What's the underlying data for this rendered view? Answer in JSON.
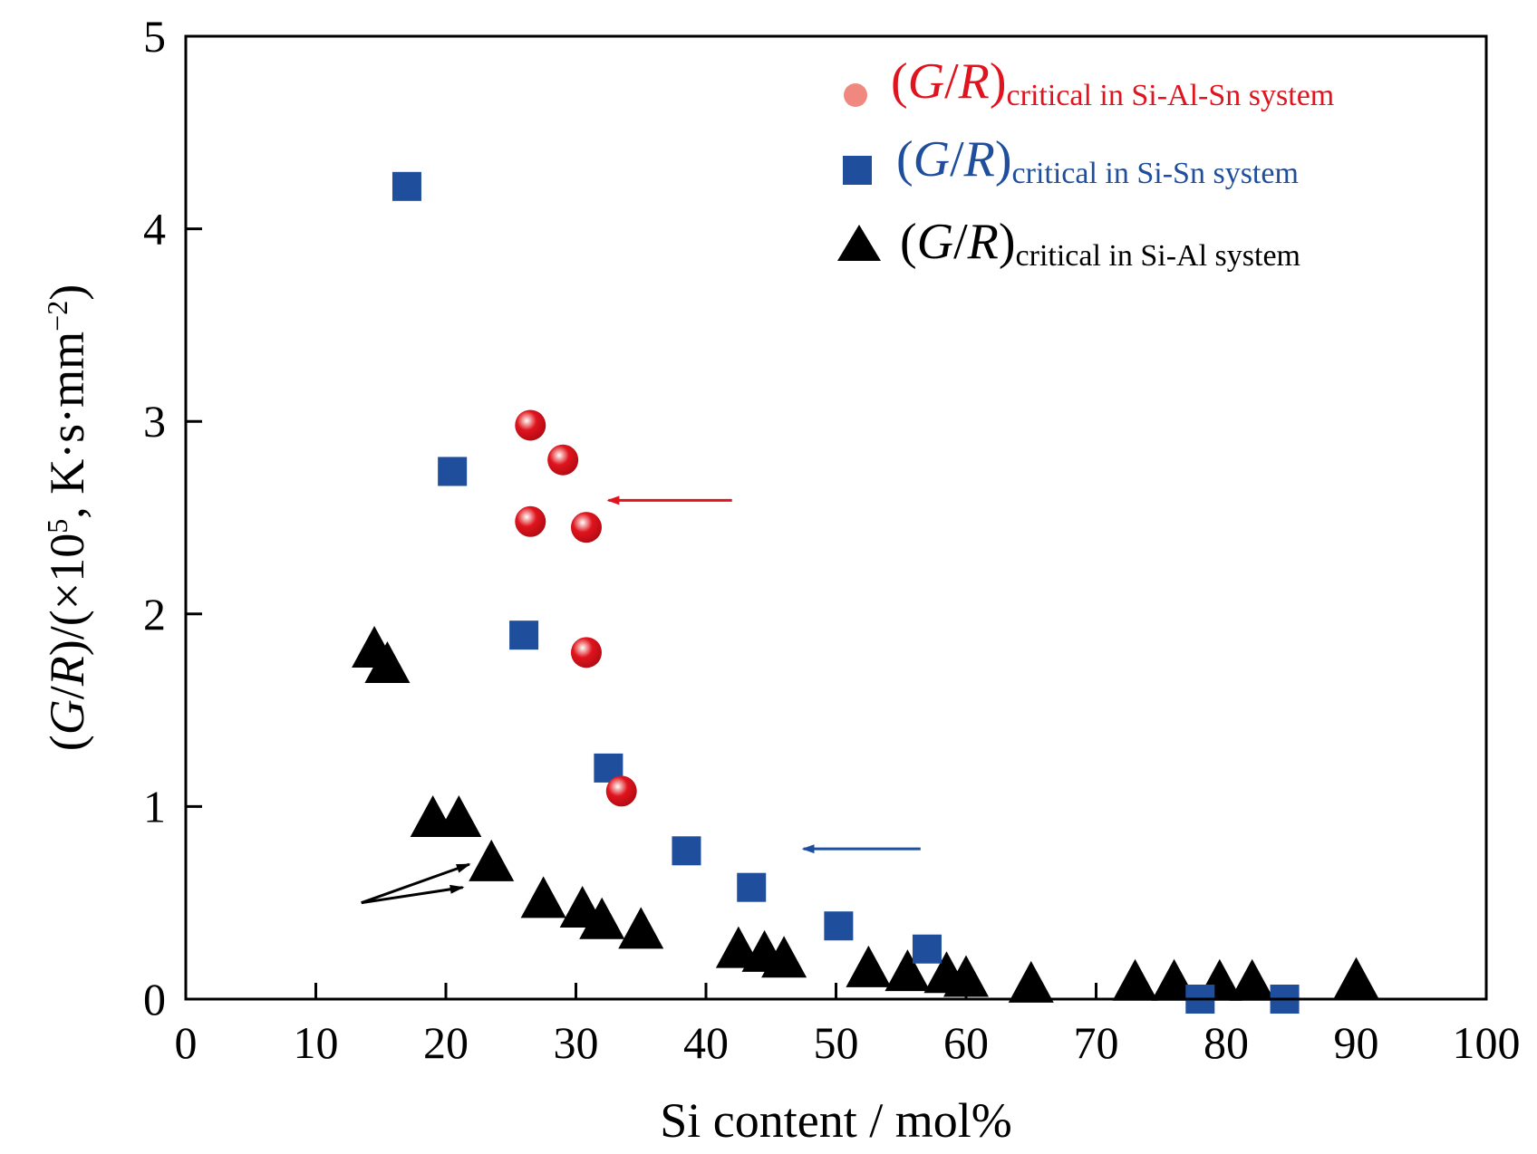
{
  "chart_data": {
    "type": "scatter",
    "xlabel": "Si content / mol%",
    "ylabel": "(G/R)/(×10⁵, K·s·mm⁻²)",
    "ylabel_parts": {
      "open": "(",
      "italic_g": "G",
      "slash": "/",
      "italic_r": "R",
      "rest": ")/(×10",
      "sup_exp": "5",
      "unit": ", K·s·mm",
      "unit_exp": "−2",
      "close": ")"
    },
    "xlim": [
      0,
      100
    ],
    "ylim": [
      0,
      5
    ],
    "xticks": [
      0,
      10,
      20,
      30,
      40,
      50,
      60,
      70,
      80,
      90,
      100
    ],
    "yticks": [
      0,
      1,
      2,
      3,
      4,
      5
    ],
    "grid": false,
    "legend_position": "top-right",
    "legend_label_parts": {
      "open": "(",
      "g": "G",
      "slash": "/",
      "r": "R",
      "close": ")"
    },
    "series": [
      {
        "name": "(G/R)critical in Si-Al-Sn system",
        "subscript": "critical in Si-Al-Sn system",
        "marker": "circle",
        "color": "#e0141e",
        "points": [
          [
            26.5,
            2.98
          ],
          [
            29,
            2.8
          ],
          [
            26.5,
            2.48
          ],
          [
            30.8,
            2.45
          ],
          [
            30.8,
            1.8
          ],
          [
            33.5,
            1.08
          ]
        ]
      },
      {
        "name": "(G/R)critical in Si-Sn system",
        "subscript": "critical in Si-Sn system",
        "marker": "square",
        "color": "#1f4e9c",
        "points": [
          [
            17,
            4.22
          ],
          [
            20.5,
            2.74
          ],
          [
            26,
            1.89
          ],
          [
            32.5,
            1.2
          ],
          [
            38.5,
            0.77
          ],
          [
            43.5,
            0.58
          ],
          [
            50.2,
            0.38
          ],
          [
            57,
            0.26
          ],
          [
            78,
            0.0
          ],
          [
            84.5,
            0.0
          ]
        ]
      },
      {
        "name": "(G/R)critical in Si-Al system",
        "subscript": "critical in Si-Al system",
        "marker": "triangle",
        "color": "#000000",
        "points": [
          [
            14.5,
            1.83
          ],
          [
            15.5,
            1.75
          ],
          [
            19,
            0.95
          ],
          [
            21,
            0.95
          ],
          [
            23.5,
            0.72
          ],
          [
            27.5,
            0.53
          ],
          [
            30.5,
            0.48
          ],
          [
            32,
            0.42
          ],
          [
            35,
            0.37
          ],
          [
            42.5,
            0.27
          ],
          [
            44.5,
            0.25
          ],
          [
            46,
            0.22
          ],
          [
            52.5,
            0.17
          ],
          [
            55.5,
            0.15
          ],
          [
            58.5,
            0.14
          ],
          [
            60,
            0.12
          ],
          [
            65,
            0.09
          ],
          [
            73,
            0.1
          ],
          [
            76,
            0.1
          ],
          [
            79.5,
            0.1
          ],
          [
            82,
            0.1
          ],
          [
            90,
            0.11
          ]
        ]
      }
    ],
    "annotations": [
      {
        "type": "arrow",
        "color": "#e0141e",
        "from": [
          42,
          2.59
        ],
        "to": [
          32.5,
          2.59
        ]
      },
      {
        "type": "arrow",
        "color": "#1f4e9c",
        "from": [
          56.5,
          0.78
        ],
        "to": [
          47.5,
          0.78
        ]
      },
      {
        "type": "arrow",
        "color": "#000000",
        "from": [
          13.5,
          0.5
        ],
        "to": [
          21.8,
          0.7
        ]
      },
      {
        "type": "arrow",
        "color": "#000000",
        "from": [
          13.5,
          0.5
        ],
        "to": [
          21.3,
          0.58
        ]
      }
    ]
  }
}
